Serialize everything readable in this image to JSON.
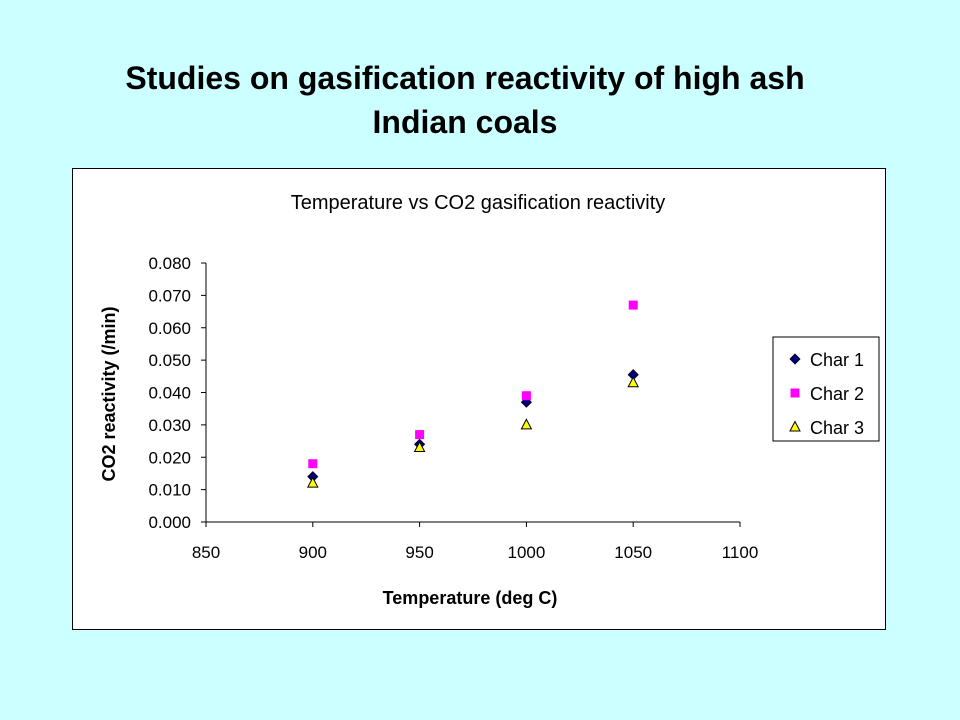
{
  "slide": {
    "title_line1": "Studies on gasification reactivity of high ash",
    "title_line2": "Indian coals"
  },
  "chart_data": {
    "type": "scatter",
    "title": "Temperature vs CO2 gasification reactivity",
    "xlabel": "Temperature (deg C)",
    "ylabel": "CO2 reactivity (/min)",
    "xlim": [
      850,
      1100
    ],
    "ylim": [
      0,
      0.08
    ],
    "x_ticks": [
      "850",
      "900",
      "950",
      "1000",
      "1050",
      "1100"
    ],
    "y_ticks": [
      "0.000",
      "0.010",
      "0.020",
      "0.030",
      "0.040",
      "0.050",
      "0.060",
      "0.070",
      "0.080"
    ],
    "grid": false,
    "legend_position": "right",
    "series": [
      {
        "name": "Char 1",
        "marker": "diamond",
        "color": "#000080",
        "x": [
          900,
          950,
          1000,
          1050
        ],
        "y": [
          0.014,
          0.024,
          0.037,
          0.0455
        ]
      },
      {
        "name": "Char 2",
        "marker": "square",
        "color": "#ff00ff",
        "x": [
          900,
          950,
          1000,
          1050
        ],
        "y": [
          0.018,
          0.027,
          0.039,
          0.067
        ]
      },
      {
        "name": "Char 3",
        "marker": "triangle",
        "color": "#ffff00",
        "x": [
          900,
          950,
          1000,
          1050
        ],
        "y": [
          0.012,
          0.023,
          0.03,
          0.043
        ]
      }
    ]
  }
}
